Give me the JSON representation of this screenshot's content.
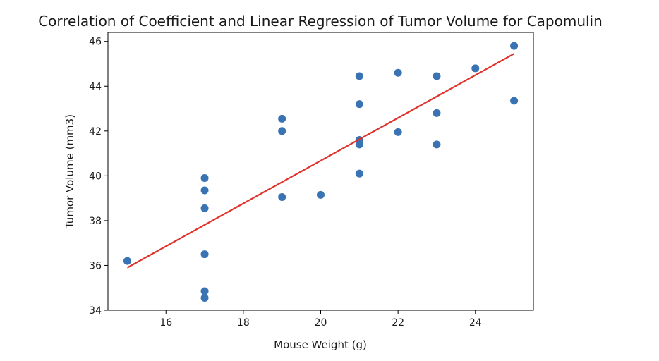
{
  "chart_data": {
    "type": "scatter",
    "title": "Correlation of Coefficient and Linear Regression of Tumor Volume for Capomulin",
    "xlabel": "Mouse Weight (g)",
    "ylabel": "Tumor Volume (mm3)",
    "xlim": [
      14.5,
      25.5
    ],
    "ylim": [
      34,
      46.4
    ],
    "xticks": [
      16,
      18,
      20,
      22,
      24
    ],
    "yticks": [
      34,
      36,
      38,
      40,
      42,
      44,
      46
    ],
    "grid": false,
    "points": [
      [
        15,
        36.2
      ],
      [
        17,
        39.9
      ],
      [
        17,
        39.35
      ],
      [
        17,
        38.55
      ],
      [
        17,
        36.5
      ],
      [
        17,
        34.85
      ],
      [
        17,
        34.55
      ],
      [
        19,
        42.55
      ],
      [
        19,
        42.0
      ],
      [
        19,
        39.05
      ],
      [
        20,
        39.15
      ],
      [
        21,
        44.45
      ],
      [
        21,
        43.2
      ],
      [
        21,
        41.6
      ],
      [
        21,
        41.4
      ],
      [
        21,
        40.1
      ],
      [
        22,
        44.6
      ],
      [
        22,
        41.95
      ],
      [
        23,
        44.45
      ],
      [
        23,
        42.8
      ],
      [
        23,
        41.4
      ],
      [
        24,
        44.8
      ],
      [
        25,
        45.8
      ],
      [
        25,
        43.35
      ]
    ],
    "regression": {
      "x": [
        15,
        25
      ],
      "y": [
        35.9,
        45.45
      ]
    },
    "colors": {
      "points": "#3a73b3",
      "line": "#e0322a"
    }
  }
}
